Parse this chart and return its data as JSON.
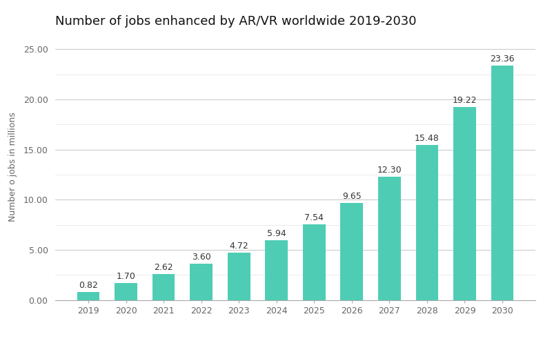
{
  "title": "Number of jobs enhanced by AR/VR worldwide 2019-2030",
  "years": [
    "2019",
    "2020",
    "2021",
    "2022",
    "2023",
    "2024",
    "2025",
    "2026",
    "2027",
    "2028",
    "2029",
    "2030"
  ],
  "values": [
    0.82,
    1.7,
    2.62,
    3.6,
    4.72,
    5.94,
    7.54,
    9.65,
    12.3,
    15.48,
    19.22,
    23.36
  ],
  "bar_color": "#4ECDB4",
  "ylabel": "Number o jobs in millions",
  "ylim": [
    0,
    26.5
  ],
  "yticks_major": [
    0.0,
    5.0,
    10.0,
    15.0,
    20.0,
    25.0
  ],
  "yticks_minor": [
    2.5,
    7.5,
    12.5,
    17.5,
    22.5
  ],
  "background_color": "#ffffff",
  "grid_color_major": "#cccccc",
  "grid_color_minor": "#e8e8e8",
  "title_fontsize": 13,
  "label_fontsize": 9,
  "tick_fontsize": 9,
  "annotation_fontsize": 9,
  "bar_width": 0.6
}
